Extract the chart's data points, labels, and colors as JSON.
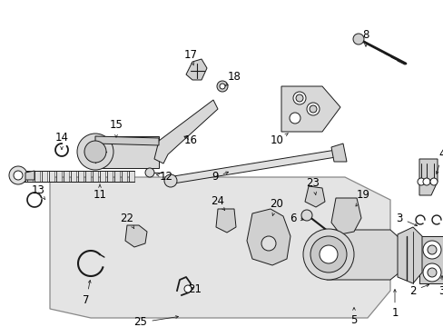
{
  "background_color": "#ffffff",
  "fig_width": 4.89,
  "fig_height": 3.6,
  "dpi": 100,
  "line_color": "#1a1a1a",
  "gray_fill": "#d8d8d8",
  "light_gray": "#e8e8e8",
  "label_fontsize": 8.5,
  "lw": 0.7
}
